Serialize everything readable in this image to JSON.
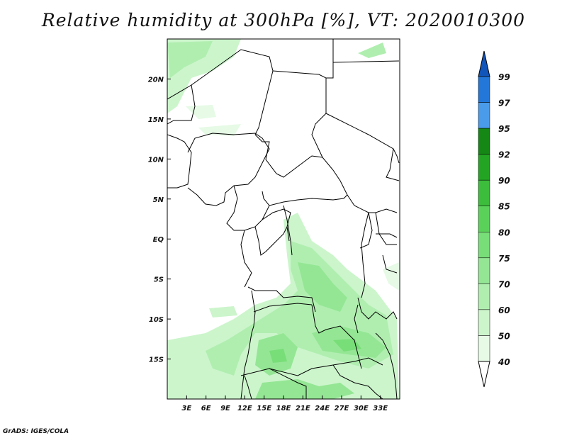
{
  "title": "Relative humidity at 300hPa [%], VT: 2020010300",
  "credit": "GrADS: IGES/COLA",
  "map": {
    "lon_range": [
      0,
      36
    ],
    "lat_range": [
      -20,
      25
    ],
    "x_ticks": [
      "3E",
      "6E",
      "9E",
      "12E",
      "15E",
      "18E",
      "21E",
      "24E",
      "27E",
      "30E",
      "33E"
    ],
    "y_ticks": [
      "20N",
      "15N",
      "10N",
      "5N",
      "EQ",
      "5S",
      "10S",
      "15S"
    ]
  },
  "colorbar": {
    "labels": [
      "40",
      "50",
      "60",
      "70",
      "75",
      "80",
      "85",
      "90",
      "92",
      "95",
      "97",
      "99"
    ],
    "colors": [
      "#ffffff",
      "#e6fae6",
      "#ccf5cc",
      "#b0eeb0",
      "#94e694",
      "#78de78",
      "#5ad25a",
      "#3cbe3c",
      "#23a523",
      "#148714",
      "#4a9bea",
      "#2277d9",
      "#1155bb"
    ]
  }
}
